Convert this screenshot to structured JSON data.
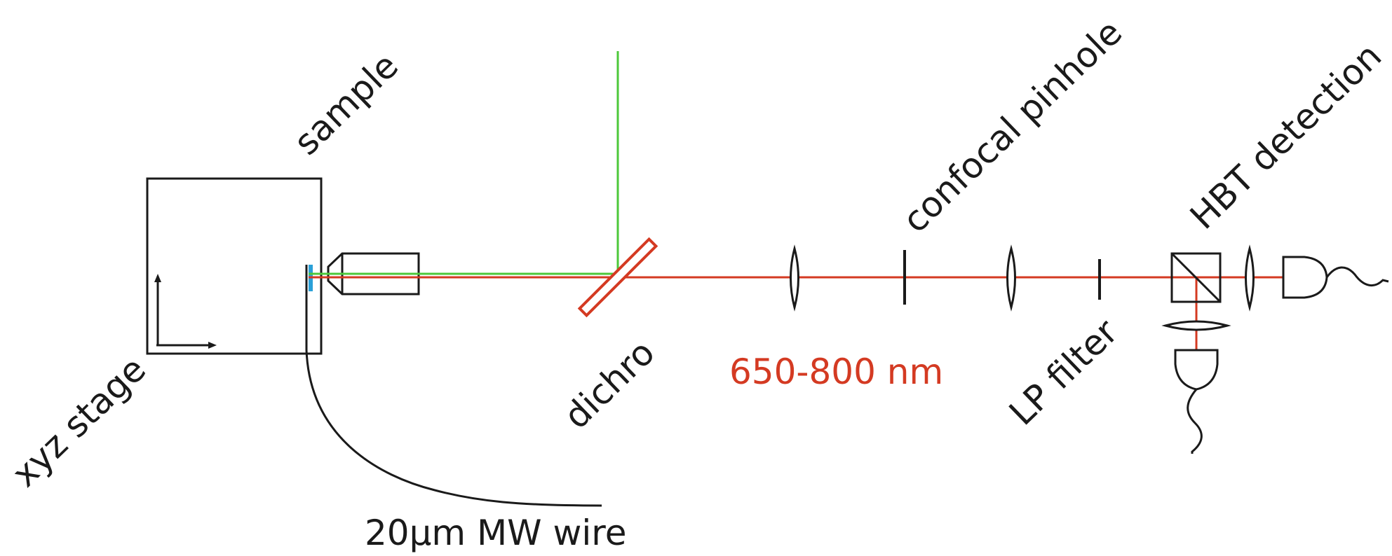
{
  "labels": {
    "sample": "sample",
    "xyz_stage": "xyz stage",
    "wire": "20µm MW wire",
    "dichro": "dichro",
    "wavelength": "650-800 nm",
    "confocal_pinhole": "confocal pinhole",
    "lp_filter": "LP filter",
    "hbt_detection": "HBT detection"
  },
  "colors": {
    "excitation_beam": "#4cc83a",
    "fluorescence_beam": "#d43a22",
    "sample_marker": "#2aa0d8",
    "outline": "#1a1a1a"
  },
  "icons": {
    "stage_axes": "xy-arrows-icon",
    "objective": "microscope-objective-icon",
    "lens": "biconvex-lens-icon",
    "beam_splitter": "beam-splitter-cube-icon",
    "detector": "photodetector-icon"
  }
}
